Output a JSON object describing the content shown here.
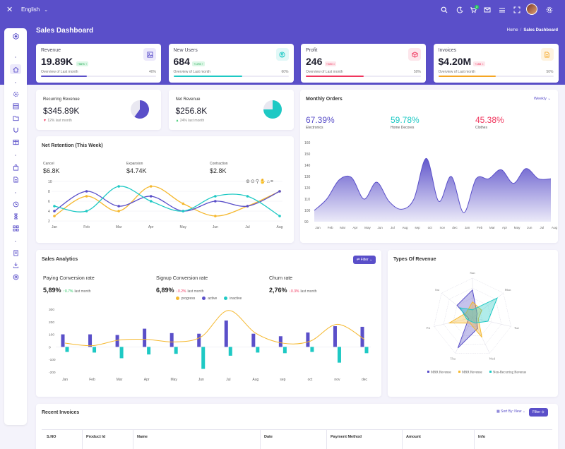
{
  "topbar": {
    "language": "English"
  },
  "page": {
    "title": "Sales Dashboard",
    "breadcrumb": [
      "Home",
      "Sales Dashboard"
    ]
  },
  "kpis": [
    {
      "label": "Revenue",
      "value": "19.89K",
      "change": "+56% ↑",
      "note": "Overview of Last month",
      "percent": "40%",
      "progress": 0.4,
      "color": "#5a4fc9",
      "icon": "image-icon"
    },
    {
      "label": "New Users",
      "value": "684",
      "change": "+13% ↑",
      "note": "Overview of Last month",
      "percent": "60%",
      "progress": 0.6,
      "color": "#1ec9c4",
      "icon": "user-icon"
    },
    {
      "label": "Profit",
      "value": "246",
      "change": "+080 ×",
      "note": "Overview of Last month",
      "percent": "50%",
      "progress": 0.5,
      "color": "#f0355d",
      "icon": "box-icon"
    },
    {
      "label": "Invoices",
      "value": "$4.20M",
      "change": "+188 ×",
      "note": "Overview of Last month",
      "percent": "50%",
      "progress": 0.5,
      "color": "#f5a623",
      "icon": "document-icon"
    }
  ],
  "revenue_cards": [
    {
      "label": "Recurring Revenue",
      "value": "$345.89K",
      "sub": "12% last month",
      "pie": 0.6,
      "color": "#5a4fc9"
    },
    {
      "label": "Net Revenue",
      "value": "$256.8K",
      "sub": "24% last month",
      "pie": 0.75,
      "color": "#1ec9c4"
    }
  ],
  "net_retention": {
    "title": "Net Retention (This Week)",
    "stats": [
      {
        "label": "Cancel",
        "value": "$6.8K"
      },
      {
        "label": "Expansion",
        "value": "$4.74K"
      },
      {
        "label": "Contraction",
        "value": "$2.8K"
      }
    ],
    "chart_data": {
      "type": "line",
      "categories": [
        "Jan",
        "Feb",
        "Mar",
        "Apr",
        "May",
        "Jun",
        "Jul",
        "Aug"
      ],
      "ylim": [
        2,
        10
      ],
      "yticks": [
        "10",
        "8",
        "6",
        "4",
        "2"
      ],
      "series": [
        {
          "values": [
            3,
            7,
            4,
            9,
            5.5,
            3,
            5,
            8
          ],
          "color": "#f5b82e"
        },
        {
          "values": [
            4,
            8,
            5,
            7,
            4,
            6,
            5,
            8
          ],
          "color": "#5a4fc9"
        },
        {
          "values": [
            5,
            4,
            9,
            6,
            4,
            7,
            7,
            3
          ],
          "color": "#1ec9c4"
        }
      ]
    }
  },
  "monthly_orders": {
    "title": "Monthly Orders",
    "period": "Weekly",
    "stats": [
      {
        "value": "67.39%",
        "label": "Electronics",
        "color": "#5a4fc9"
      },
      {
        "value": "59.78%",
        "label": "Home Decores",
        "color": "#1ec9c4"
      },
      {
        "value": "45.38%",
        "label": "Clothes",
        "color": "#f0355d"
      }
    ],
    "chart_data": {
      "type": "area",
      "categories": [
        "Jan",
        "Feb",
        "Mar",
        "Apr",
        "May",
        "Jun",
        "Jul",
        "Aug",
        "sep",
        "oct",
        "nov",
        "dec",
        "Jan",
        "Feb",
        "Mar",
        "Apr",
        "May",
        "Jun",
        "Jul",
        "Aug"
      ],
      "values": [
        100,
        110,
        127,
        129,
        110,
        125,
        108,
        101,
        110,
        146,
        108,
        130,
        98,
        128,
        128,
        136,
        124,
        137,
        128,
        128
      ],
      "ylim": [
        90,
        160
      ],
      "yticks": [
        "160",
        "150",
        "140",
        "130",
        "120",
        "110",
        "100",
        "90"
      ],
      "color": "#5a4fc9"
    }
  },
  "sales_analytics": {
    "title": "Sales Analytics",
    "filter": "Filter",
    "stats": [
      {
        "label": "Paying Conversion rate",
        "value": "5,89%",
        "change": "↑0.7%",
        "note": "last month",
        "color": "#22c55e"
      },
      {
        "label": "Signup Conversion rate",
        "value": "6,89%",
        "change": "↓0.2%",
        "note": "last month",
        "color": "#f0355d"
      },
      {
        "label": "Churn rate",
        "value": "2,76%",
        "change": "↓0.3%",
        "note": "last month",
        "color": "#f0355d"
      }
    ],
    "legend": [
      "progress",
      "active",
      "inactive"
    ],
    "chart_data": {
      "type": "bar",
      "categories": [
        "Jan",
        "Feb",
        "Mar",
        "Apr",
        "May",
        "Jun",
        "Jul",
        "Aug",
        "sep",
        "oct",
        "nov",
        "dec"
      ],
      "ylim": [
        -200,
        300
      ],
      "yticks": [
        "300",
        "200",
        "100",
        "0",
        "-100",
        "-200"
      ],
      "series": [
        {
          "name": "active",
          "values": [
            100,
            100,
            95,
            145,
            110,
            105,
            210,
            105,
            85,
            115,
            165,
            160
          ],
          "color": "#5a4fc9"
        },
        {
          "name": "inactive",
          "values": [
            -40,
            -45,
            -90,
            -60,
            -55,
            -175,
            -70,
            -45,
            -50,
            -40,
            -125,
            -50
          ],
          "color": "#1ec9c4"
        },
        {
          "name": "progress",
          "values": [
            30,
            10,
            55,
            60,
            40,
            80,
            290,
            110,
            30,
            45,
            180,
            60
          ],
          "color": "#f5b82e"
        }
      ]
    }
  },
  "types_of_revenue": {
    "title": "Types Of Revenue",
    "chart_data": {
      "type": "radar",
      "axes": [
        "Sun",
        "Mon",
        "Tue",
        "Wed",
        "Thu",
        "Fri",
        "Sat"
      ],
      "series": [
        {
          "name": "MRR Revenue",
          "values": [
            0.7,
            0.15,
            0.1,
            0.3,
            0.85,
            0.1,
            0.5
          ],
          "color": "#5a4fc9"
        },
        {
          "name": "MRR Revenue",
          "values": [
            0.4,
            0.3,
            0.15,
            0.55,
            0.15,
            0.6,
            0.2
          ],
          "color": "#f5b82e"
        },
        {
          "name": "Non-Recurring Revenue",
          "values": [
            0.2,
            0.8,
            0.4,
            0.15,
            0.1,
            0.15,
            0.4
          ],
          "color": "#1ec9c4"
        }
      ]
    }
  },
  "invoices": {
    "title": "Recent Invoices",
    "sort": "Sort By: New",
    "filter": "Filter",
    "columns": [
      "S.NO",
      "Product Id",
      "Name",
      "Date",
      "Payment Method",
      "Amount",
      "Info"
    ]
  }
}
